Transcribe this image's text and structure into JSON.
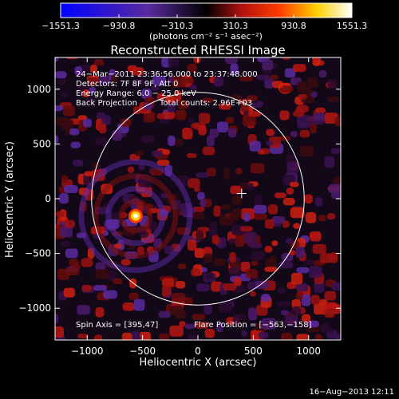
{
  "chart_data": {
    "type": "heatmap",
    "title": "Reconstructed RHESSI Image",
    "xlabel": "Heliocentric X (arcsec)",
    "ylabel": "Heliocentric Y (arcsec)",
    "xlim": [
      -1290,
      1290
    ],
    "ylim": [
      -1290,
      1290
    ],
    "x_ticks": [
      -1000,
      -500,
      0,
      500,
      1000
    ],
    "y_ticks": [
      -1000,
      -500,
      0,
      500,
      1000
    ],
    "x_tick_labels": [
      "−1000",
      "−500",
      "0",
      "500",
      "1000"
    ],
    "y_tick_labels": [
      "−1000",
      "−500",
      "0",
      "500",
      "1000"
    ],
    "colorbar": {
      "ticks": [
        -1551.3,
        -930.8,
        -310.3,
        310.3,
        930.8,
        1551.3
      ],
      "tick_labels": [
        "−1551.3",
        "−930.8",
        "−310.3",
        "310.3",
        "930.8",
        "1551.3"
      ],
      "unit_label": "(photons cm⁻² s⁻¹ asec⁻²)",
      "range": [
        -1551.3,
        1551.3
      ]
    },
    "annotations": [
      "24−Mar−2011 23:36:56.000 to 23:37:48.000",
      "Detectors: 7F 8F 9F, Att 0",
      "Energy Range: 6.0 − 25.0 keV",
      "Back Projection",
      "Total counts: 2.96E+03"
    ],
    "spin_axis_text": "Spin Axis = [395,47]",
    "flare_position_text": "Flare Position = [−563,−158]",
    "spin_axis": [
      395,
      47
    ],
    "flare_position": [
      -563,
      -158
    ],
    "solar_disk_radius_arcsec": 960,
    "plot_date": "16−Aug−2013 12:11",
    "colormap_stops": [
      "#0000ff",
      "#5a2aa0",
      "#000000",
      "#b01010",
      "#ff3c00",
      "#ffd000",
      "#ffffff"
    ],
    "grid": false,
    "legend": "none"
  }
}
